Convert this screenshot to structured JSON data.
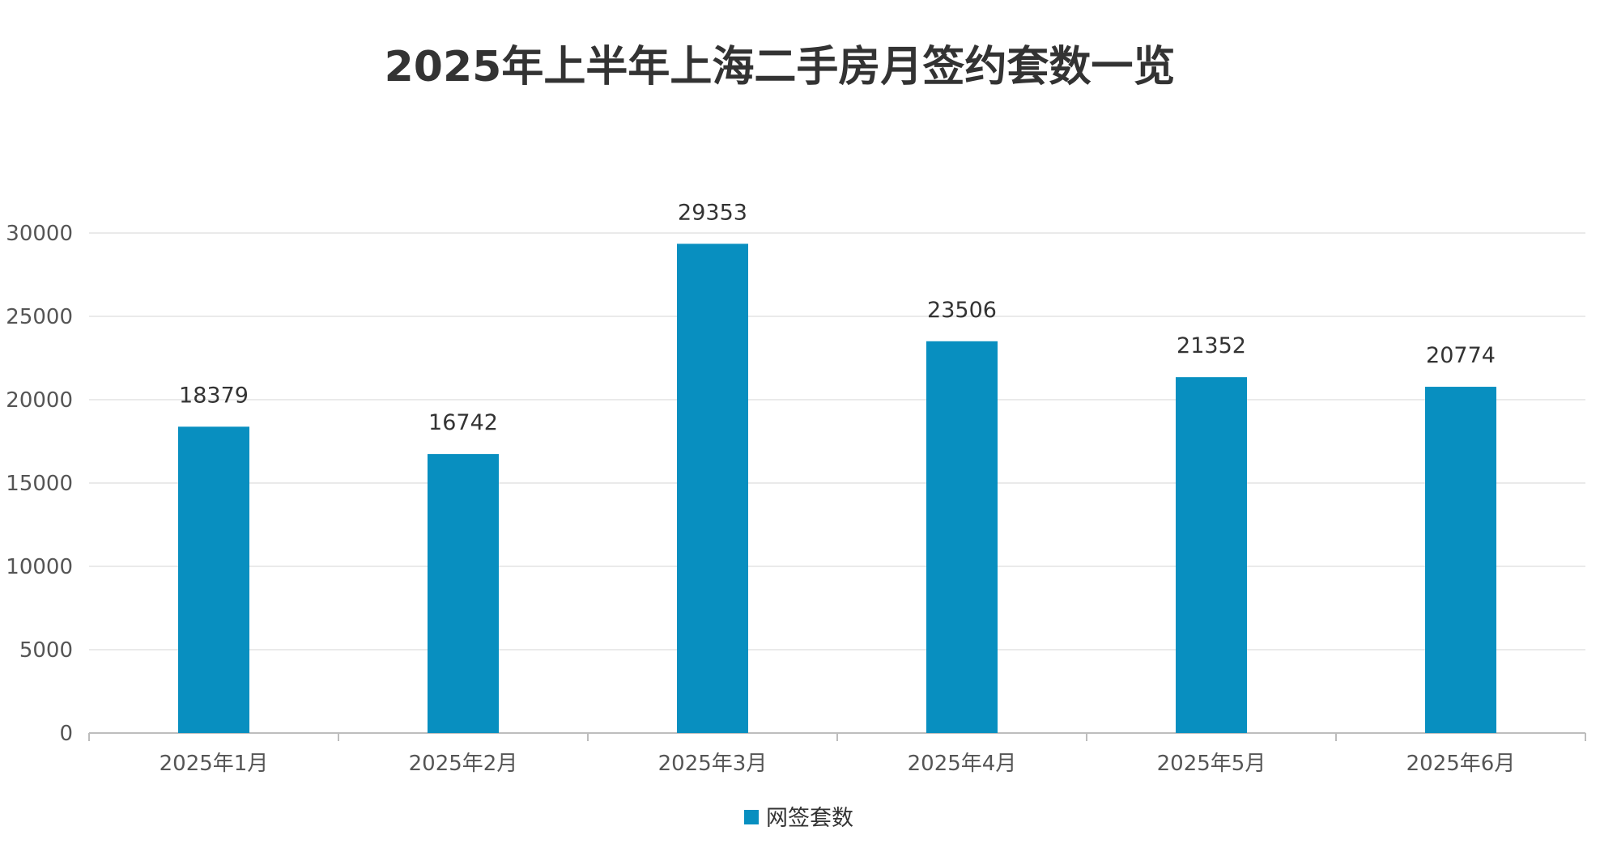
{
  "chart_data": {
    "type": "bar",
    "title": "2025年上半年上海二手房月签约套数一览",
    "categories": [
      "2025年1月",
      "2025年2月",
      "2025年3月",
      "2025年4月",
      "2025年5月",
      "2025年6月"
    ],
    "series": [
      {
        "name": "网签套数",
        "color": "#088fc0",
        "values": [
          18379,
          16742,
          29353,
          23506,
          21352,
          20774
        ]
      }
    ],
    "ylim": [
      0,
      30000
    ],
    "yticks": [
      0,
      5000,
      10000,
      15000,
      20000,
      25000,
      30000
    ],
    "xlabel": "",
    "ylabel": "",
    "grid": true,
    "legend_position": "bottom-center",
    "data_labels": true
  }
}
